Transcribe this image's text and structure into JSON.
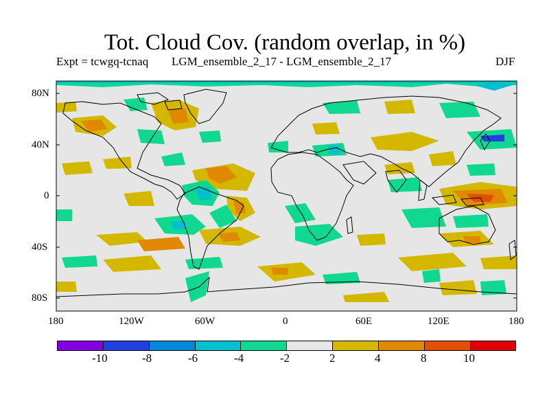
{
  "title": "Tot. Cloud Cov. (random overlap, in %)",
  "expt_label": "Expt = tcwgq-tcnaq",
  "comparison_label": "LGM_ensemble_2_17 - LGM_ensemble_2_17",
  "season": "DJF",
  "colors": {
    "background_field": "#e6e6e6",
    "coastline": "#000000"
  },
  "latitude_ticks": [
    "80N",
    "40N",
    "0",
    "40S",
    "80S"
  ],
  "longitude_ticks": [
    "180",
    "120W",
    "60W",
    "0",
    "60E",
    "120E",
    "180"
  ],
  "colorbar": {
    "labels": [
      "-10",
      "-8",
      "-6",
      "-4",
      "-2",
      "2",
      "4",
      "8",
      "10"
    ],
    "colors": [
      "#8000e0",
      "#2040e0",
      "#0088d8",
      "#00c0d0",
      "#10d890",
      "#e6e6e6",
      "#d4b800",
      "#e08800",
      "#e05000",
      "#e00000"
    ]
  }
}
